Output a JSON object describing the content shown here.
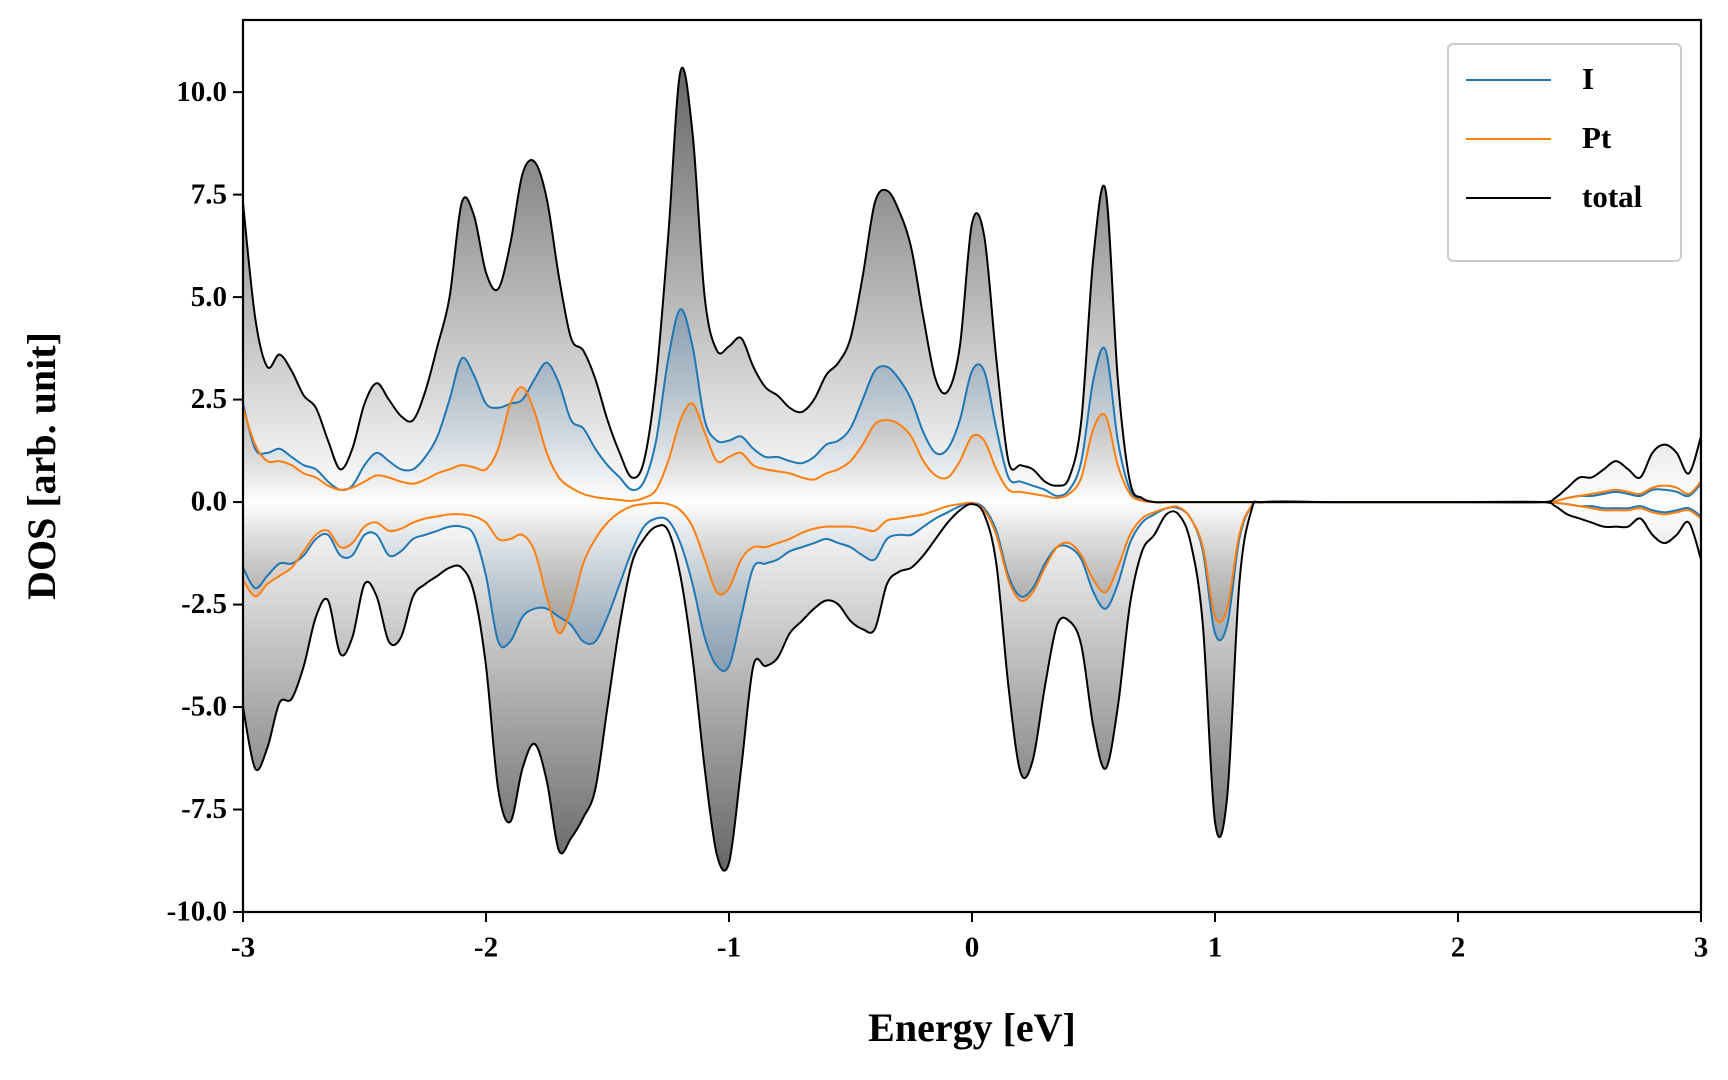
{
  "chart_data": {
    "type": "line",
    "xlabel": "Energy [eV]",
    "ylabel": "DOS [arb. unit]",
    "x": [
      -3,
      -2.95,
      -2.9,
      -2.85,
      -2.8,
      -2.75,
      -2.7,
      -2.65,
      -2.6,
      -2.55,
      -2.5,
      -2.45,
      -2.4,
      -2.35,
      -2.3,
      -2.25,
      -2.2,
      -2.15,
      -2.1,
      -2.05,
      -2,
      -1.95,
      -1.9,
      -1.85,
      -1.8,
      -1.75,
      -1.7,
      -1.65,
      -1.6,
      -1.55,
      -1.5,
      -1.45,
      -1.4,
      -1.35,
      -1.3,
      -1.25,
      -1.2,
      -1.15,
      -1.1,
      -1.05,
      -1,
      -0.95,
      -0.9,
      -0.85,
      -0.8,
      -0.75,
      -0.7,
      -0.65,
      -0.6,
      -0.55,
      -0.5,
      -0.45,
      -0.4,
      -0.35,
      -0.3,
      -0.25,
      -0.2,
      -0.15,
      -0.1,
      -0.05,
      0,
      0.05,
      0.1,
      0.15,
      0.2,
      0.25,
      0.3,
      0.35,
      0.4,
      0.45,
      0.5,
      0.55,
      0.6,
      0.65,
      0.7,
      0.75,
      0.8,
      0.85,
      0.9,
      0.95,
      1,
      1.05,
      1.1,
      1.15,
      1.2,
      1.5,
      2,
      2.35,
      2.4,
      2.45,
      2.5,
      2.55,
      2.6,
      2.65,
      2.7,
      2.75,
      2.8,
      2.85,
      2.9,
      2.95,
      3
    ],
    "series": [
      {
        "name": "I",
        "color": "#1f77b4",
        "fill": "#2a6a9e",
        "values": [
          2.4,
          1.3,
          1.2,
          1.3,
          1.1,
          0.9,
          0.8,
          0.5,
          0.3,
          0.4,
          0.9,
          1.2,
          1.0,
          0.8,
          0.8,
          1.1,
          1.6,
          2.5,
          3.5,
          3.1,
          2.4,
          2.3,
          2.4,
          2.5,
          3.0,
          3.4,
          2.9,
          2.0,
          1.8,
          1.3,
          0.9,
          0.6,
          0.3,
          0.5,
          1.5,
          3.5,
          4.7,
          3.8,
          2.0,
          1.5,
          1.5,
          1.6,
          1.3,
          1.1,
          1.1,
          1.0,
          0.95,
          1.1,
          1.4,
          1.5,
          1.8,
          2.5,
          3.2,
          3.3,
          3.0,
          2.5,
          1.7,
          1.2,
          1.3,
          2.0,
          3.2,
          3.2,
          1.8,
          0.6,
          0.5,
          0.4,
          0.3,
          0.15,
          0.3,
          1.0,
          3.0,
          3.7,
          1.5,
          0.3,
          0.05,
          0,
          0,
          0,
          0,
          0,
          0,
          0,
          0,
          0,
          0,
          0,
          0,
          0,
          0.02,
          0.1,
          0.15,
          0.15,
          0.2,
          0.25,
          0.2,
          0.15,
          0.3,
          0.3,
          0.25,
          0.15,
          0.45
        ],
        "values_down": [
          -1.6,
          -2.1,
          -1.8,
          -1.5,
          -1.5,
          -1.3,
          -0.9,
          -0.8,
          -1.3,
          -1.3,
          -0.8,
          -0.8,
          -1.3,
          -1.2,
          -0.9,
          -0.8,
          -0.7,
          -0.6,
          -0.6,
          -0.8,
          -1.8,
          -3.4,
          -3.4,
          -2.8,
          -2.6,
          -2.6,
          -2.8,
          -3.0,
          -3.4,
          -3.4,
          -2.8,
          -2.0,
          -1.2,
          -0.6,
          -0.4,
          -0.45,
          -1.0,
          -2.0,
          -3.3,
          -4.0,
          -4.0,
          -2.8,
          -1.6,
          -1.5,
          -1.4,
          -1.2,
          -1.1,
          -1.0,
          -0.9,
          -1.0,
          -1.1,
          -1.3,
          -1.4,
          -0.9,
          -0.8,
          -0.8,
          -0.6,
          -0.4,
          -0.25,
          -0.1,
          -0.02,
          -0.15,
          -0.7,
          -1.8,
          -2.3,
          -2.1,
          -1.5,
          -1.1,
          -1.1,
          -1.4,
          -2.2,
          -2.6,
          -2.0,
          -1.0,
          -0.5,
          -0.3,
          -0.15,
          -0.15,
          -0.4,
          -1.2,
          -3.2,
          -3.0,
          -0.9,
          -0.1,
          0,
          0,
          0,
          0,
          -0.02,
          -0.05,
          -0.1,
          -0.1,
          -0.15,
          -0.15,
          -0.15,
          -0.1,
          -0.2,
          -0.25,
          -0.2,
          -0.15,
          -0.35
        ]
      },
      {
        "name": "Pt",
        "color": "#ff7f0e",
        "fill": "#a86a30",
        "values": [
          2.3,
          1.4,
          1.0,
          1.0,
          0.9,
          0.7,
          0.6,
          0.4,
          0.3,
          0.35,
          0.5,
          0.65,
          0.6,
          0.5,
          0.45,
          0.55,
          0.7,
          0.8,
          0.9,
          0.85,
          0.8,
          1.3,
          2.4,
          2.8,
          2.2,
          1.2,
          0.6,
          0.35,
          0.2,
          0.12,
          0.08,
          0.05,
          0.03,
          0.1,
          0.3,
          1.0,
          2.0,
          2.4,
          1.7,
          1.0,
          1.1,
          1.2,
          0.9,
          0.8,
          0.75,
          0.7,
          0.6,
          0.55,
          0.7,
          0.8,
          1.0,
          1.4,
          1.9,
          2.0,
          1.9,
          1.6,
          1.0,
          0.65,
          0.6,
          1.0,
          1.6,
          1.5,
          0.8,
          0.3,
          0.25,
          0.2,
          0.15,
          0.1,
          0.2,
          0.6,
          1.8,
          2.1,
          0.9,
          0.2,
          0.03,
          0,
          0,
          0,
          0,
          0,
          0,
          0,
          0,
          0,
          0,
          0,
          0,
          0,
          0.02,
          0.1,
          0.15,
          0.2,
          0.25,
          0.3,
          0.25,
          0.2,
          0.35,
          0.4,
          0.35,
          0.2,
          0.5
        ],
        "values_down": [
          -1.9,
          -2.3,
          -2.0,
          -1.8,
          -1.6,
          -1.2,
          -0.8,
          -0.7,
          -1.1,
          -1.0,
          -0.6,
          -0.5,
          -0.7,
          -0.65,
          -0.5,
          -0.4,
          -0.35,
          -0.3,
          -0.3,
          -0.35,
          -0.5,
          -0.9,
          -0.9,
          -0.8,
          -1.2,
          -2.3,
          -3.2,
          -2.6,
          -1.5,
          -0.9,
          -0.5,
          -0.25,
          -0.1,
          -0.05,
          -0.02,
          -0.05,
          -0.2,
          -0.6,
          -1.4,
          -2.2,
          -2.1,
          -1.4,
          -1.1,
          -1.1,
          -1.0,
          -0.9,
          -0.75,
          -0.65,
          -0.6,
          -0.6,
          -0.6,
          -0.65,
          -0.7,
          -0.45,
          -0.4,
          -0.35,
          -0.3,
          -0.2,
          -0.1,
          -0.05,
          -0.02,
          -0.2,
          -0.8,
          -1.9,
          -2.4,
          -2.2,
          -1.6,
          -1.1,
          -1.0,
          -1.3,
          -1.9,
          -2.2,
          -1.6,
          -0.8,
          -0.4,
          -0.25,
          -0.15,
          -0.12,
          -0.4,
          -1.1,
          -2.8,
          -2.6,
          -0.8,
          -0.1,
          0,
          0,
          0,
          0,
          -0.02,
          -0.05,
          -0.1,
          -0.15,
          -0.2,
          -0.2,
          -0.2,
          -0.15,
          -0.25,
          -0.3,
          -0.25,
          -0.2,
          -0.4
        ]
      },
      {
        "name": "total",
        "color": "#000000",
        "fill": "#555555",
        "values": [
          7.3,
          4.5,
          3.3,
          3.6,
          3.2,
          2.6,
          2.3,
          1.5,
          0.8,
          1.3,
          2.4,
          2.9,
          2.5,
          2.1,
          2.0,
          2.7,
          3.8,
          5.0,
          7.3,
          7.0,
          5.6,
          5.2,
          6.3,
          8.0,
          8.3,
          7.4,
          5.5,
          4.0,
          3.7,
          3.0,
          2.0,
          1.2,
          0.6,
          1.0,
          3.0,
          6.5,
          10.5,
          9.0,
          5.0,
          3.7,
          3.8,
          4.0,
          3.3,
          2.8,
          2.6,
          2.3,
          2.2,
          2.5,
          3.1,
          3.4,
          4.0,
          5.5,
          7.3,
          7.6,
          7.1,
          6.2,
          4.5,
          3.0,
          2.7,
          3.8,
          6.8,
          6.5,
          3.5,
          1.0,
          0.9,
          0.8,
          0.5,
          0.4,
          0.6,
          2.0,
          6.0,
          7.6,
          3.0,
          0.5,
          0.1,
          0,
          0,
          0,
          0,
          0,
          0,
          0,
          0,
          0,
          0,
          0,
          0,
          0,
          0.1,
          0.35,
          0.6,
          0.6,
          0.8,
          1.0,
          0.8,
          0.6,
          1.2,
          1.4,
          1.2,
          0.7,
          1.6
        ],
        "values_down": [
          -5.0,
          -6.5,
          -6.0,
          -4.9,
          -4.8,
          -4.0,
          -2.8,
          -2.4,
          -3.7,
          -3.3,
          -2.0,
          -2.3,
          -3.4,
          -3.3,
          -2.3,
          -2.0,
          -1.8,
          -1.6,
          -1.6,
          -2.2,
          -4.0,
          -7.0,
          -7.8,
          -6.5,
          -5.9,
          -6.8,
          -8.5,
          -8.2,
          -7.7,
          -7.0,
          -5.0,
          -3.0,
          -1.5,
          -0.9,
          -0.6,
          -0.7,
          -1.8,
          -3.8,
          -6.5,
          -8.6,
          -8.8,
          -6.5,
          -4.0,
          -4.0,
          -3.8,
          -3.2,
          -2.9,
          -2.6,
          -2.4,
          -2.5,
          -2.9,
          -3.1,
          -3.1,
          -2.0,
          -1.7,
          -1.6,
          -1.3,
          -0.9,
          -0.5,
          -0.2,
          -0.05,
          -0.3,
          -1.5,
          -4.5,
          -6.6,
          -6.3,
          -4.5,
          -3.0,
          -2.9,
          -3.5,
          -5.5,
          -6.5,
          -5.0,
          -2.5,
          -1.2,
          -0.8,
          -0.3,
          -0.3,
          -1.0,
          -3.0,
          -7.8,
          -7.2,
          -2.0,
          -0.2,
          0,
          0,
          0,
          0,
          -0.1,
          -0.3,
          -0.4,
          -0.5,
          -0.6,
          -0.6,
          -0.6,
          -0.4,
          -0.8,
          -1.0,
          -0.8,
          -0.5,
          -1.4
        ]
      }
    ],
    "fill_order": [
      "total",
      "I",
      "Pt"
    ],
    "xlim": [
      -3,
      3
    ],
    "xticks": [
      -3,
      -2,
      -1,
      0,
      1,
      2,
      3
    ],
    "ylim": [
      -10,
      11.76
    ],
    "yticks": [
      {
        "value": -10,
        "label": "-10.0"
      },
      -7.5,
      {
        "value": -5,
        "label": "-5.0"
      },
      -2.5,
      {
        "value": 0,
        "label": "0.0"
      },
      2.5,
      {
        "value": 5,
        "label": "5.0"
      },
      7.5,
      {
        "value": 10,
        "label": "10.0"
      }
    ],
    "grid": false,
    "legend": "upper right"
  }
}
